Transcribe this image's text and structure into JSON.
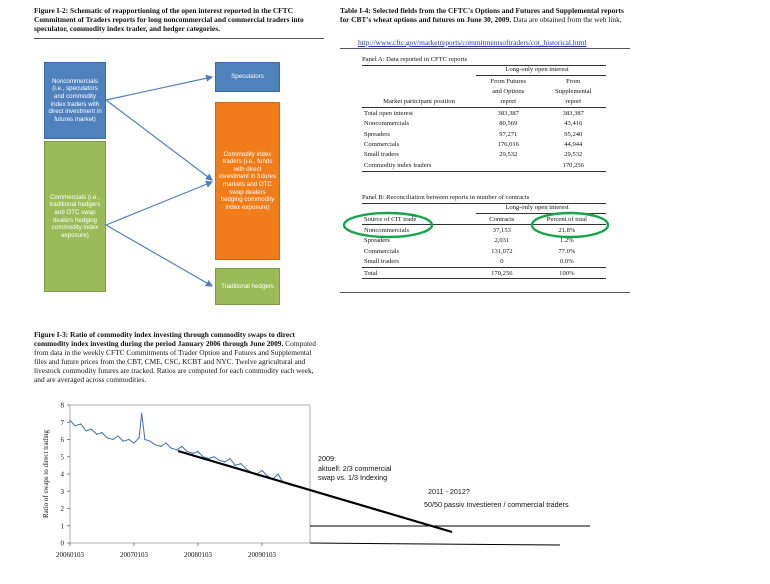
{
  "fig12": {
    "caption_label": "Figure I-2:",
    "caption_text": " Schematic of reapportioning of the open interest reported in the CFTC Commitment of Traders reports for long noncommercial and commercial traders into speculator, commodity index trader, and hedger categories.",
    "box_noncomm": "Noncommercials (i.e., speculators and commodity index traders with direct investment in futures market)",
    "box_comm": "Commercials (i.e., traditional hedgers and OTC swap dealers hedging commodity index exposure)",
    "box_spec": "Speculators",
    "box_cit": "Commodity index traders (i.e., funds with direct investment in futures markets and OTC swap dealers hedging commodity index exposure)",
    "box_hedgers": "Traditional hedgers",
    "colors": {
      "blue": "#4f81bd",
      "green": "#9bbb59",
      "orange": "#f07d1a",
      "arrow": "#4f81bd"
    }
  },
  "table14": {
    "caption_label": "Table I-4:",
    "caption_text": " Selected fields from the CFTC's Options and Futures and Supplemental reports for CBT's wheat options and futures on June 30, 2009. Data are obtained from the web link,",
    "link": "http://www.cftc.gov/marketreports/commitmentsoftraders/cot_historical.html",
    "panel_a": {
      "title": "Panel A: Data reported in CFTC reports",
      "group_header": "Long-only open interest",
      "col1": "Market participant position",
      "col2_l1": "From Futures",
      "col2_l2": "and Options",
      "col2_l3": "report",
      "col3_l1": "From",
      "col3_l2": "Supplemental",
      "col3_l3": "report",
      "rows": [
        {
          "label": "Total open interest",
          "a": "383,387",
          "b": "383,387"
        },
        {
          "label": "Noncommercials",
          "a": "80,569",
          "b": "43,416"
        },
        {
          "label": "Spreaders",
          "a": "97,271",
          "b": "95,240"
        },
        {
          "label": "Commercials",
          "a": "176,016",
          "b": "44,944"
        },
        {
          "label": "Small traders",
          "a": "29,532",
          "b": "29,532"
        },
        {
          "label": "Commodity index traders",
          "a": "",
          "b": "170,256"
        }
      ]
    },
    "panel_b": {
      "title": "Panel B: Reconciliation between reports in number of contracts",
      "group_header": "Long-only open interest",
      "col1": "Source of CIT trade",
      "col2": "Contracts",
      "col3": "Percent of total",
      "rows": [
        {
          "label": "Noncommercials",
          "a": "37,153",
          "b": "21.8%"
        },
        {
          "label": "Spreaders",
          "a": "2,031",
          "b": "1.2%"
        },
        {
          "label": "Commercials",
          "a": "131,072",
          "b": "77.0%"
        },
        {
          "label": "Small traders",
          "a": "0",
          "b": "0.0%"
        },
        {
          "label": "Total",
          "a": "170,256",
          "b": "100%"
        }
      ]
    }
  },
  "fig13": {
    "caption_label": "Figure I-3:",
    "caption_bold": " Ratio of commodity index investing through commodity swaps to direct commodity index investing during the period January 2006 through June 2009.",
    "caption_text": " Computed from data in the weekly CFTC Commitments of Trader Option and Futures and Supplemental files and future prices from the CBT, CME, CSC, KCBT and NYC. Twelve agricultural and livestock commodity futures are tracked. Ratios are computed for each commodity each week, and are averaged across commodities."
  },
  "annotations": {
    "a2009_l1": "2009:",
    "a2009_l2": "aktuell: 2/3 commercial",
    "a2009_l3": "swap vs. 1/3 Indexing",
    "a2011": "2011 - 2012?",
    "a5050": "50/50 passiv Investieren / commercial traders"
  },
  "chart_data": {
    "type": "line",
    "title": "",
    "xlabel": "",
    "ylabel": "Ratio of swaps to direct trading",
    "ylim": [
      0,
      8
    ],
    "yticks": [
      "0",
      "1",
      "2",
      "3",
      "4",
      "5",
      "6",
      "7",
      "8"
    ],
    "xticks": [
      "20060103",
      "20070103",
      "20080103",
      "20090103"
    ],
    "grid": false,
    "series": [
      {
        "name": "Ratio",
        "x": [
          2006.0,
          2006.08,
          2006.17,
          2006.25,
          2006.33,
          2006.42,
          2006.5,
          2006.58,
          2006.67,
          2006.75,
          2006.83,
          2006.92,
          2007.0,
          2007.08,
          2007.12,
          2007.17,
          2007.25,
          2007.33,
          2007.42,
          2007.5,
          2007.58,
          2007.67,
          2007.75,
          2007.83,
          2007.92,
          2008.0,
          2008.08,
          2008.17,
          2008.25,
          2008.33,
          2008.42,
          2008.5,
          2008.58,
          2008.67,
          2008.75,
          2008.83,
          2008.92,
          2009.0,
          2009.08,
          2009.17,
          2009.25,
          2009.33,
          2009.42,
          2009.5
        ],
        "values": [
          7.1,
          6.8,
          6.9,
          6.5,
          6.6,
          6.3,
          6.4,
          6.1,
          6.0,
          6.2,
          5.9,
          6.0,
          5.8,
          6.1,
          7.5,
          6.0,
          5.9,
          5.7,
          5.6,
          5.8,
          5.5,
          5.4,
          5.6,
          5.3,
          5.2,
          5.3,
          5.0,
          4.9,
          5.0,
          4.8,
          4.7,
          4.9,
          4.5,
          4.6,
          4.3,
          4.1,
          4.0,
          4.2,
          3.9,
          3.7,
          4.0,
          3.5,
          3.4,
          3.3
        ]
      }
    ]
  }
}
